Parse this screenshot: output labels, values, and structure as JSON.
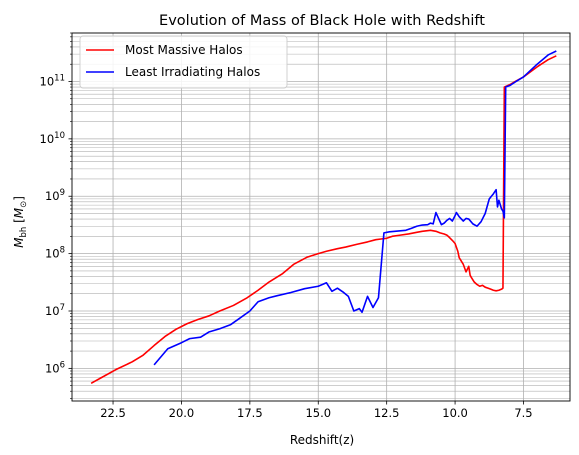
{
  "chart_data": {
    "type": "line",
    "title": "Evolution of Mass of Black Hole with Redshift",
    "xlabel": "Redshift(z)",
    "ylabel": "M_bh [M_⊙]",
    "xlim": [
      24.0,
      5.8
    ],
    "ylim": [
      270000,
      700000000000
    ],
    "yscale": "log",
    "x_inverted": true,
    "grid": true,
    "legend_position": "upper-left",
    "x_ticks": [
      22.5,
      20.0,
      17.5,
      15.0,
      12.5,
      10.0,
      7.5
    ],
    "x_tick_labels": [
      "22.5",
      "20.0",
      "17.5",
      "15.0",
      "12.5",
      "10.0",
      "7.5"
    ],
    "y_ticks": [
      1000000,
      10000000,
      100000000,
      1000000000,
      10000000000,
      100000000000
    ],
    "y_tick_exponents": [
      "6",
      "7",
      "8",
      "9",
      "10",
      "11"
    ],
    "series": [
      {
        "name": "Most Massive Halos",
        "color": "#ff0000",
        "x": [
          23.3,
          22.9,
          22.4,
          21.8,
          21.4,
          21.0,
          20.6,
          20.2,
          19.8,
          19.4,
          19.0,
          18.6,
          18.1,
          17.6,
          17.2,
          16.8,
          16.3,
          15.9,
          15.4,
          15.0,
          14.7,
          14.3,
          14.0,
          13.6,
          13.2,
          12.9,
          12.5,
          12.3,
          12.0,
          11.7,
          11.4,
          11.2,
          10.9,
          10.7,
          10.55,
          10.4,
          10.3,
          10.2,
          10.1,
          10.0,
          9.9,
          9.85,
          9.7,
          9.6,
          9.5,
          9.45,
          9.4,
          9.3,
          9.2,
          9.1,
          9.0,
          8.9,
          8.8,
          8.7,
          8.6,
          8.5,
          8.4,
          8.3,
          8.25,
          8.2,
          8.15,
          8.0,
          7.8,
          7.5,
          7.0,
          6.6,
          6.3
        ],
        "values": [
          550000,
          700000,
          950000,
          1300000,
          1700000,
          2500000,
          3600000,
          4800000,
          6000000,
          7100000,
          8200000,
          10000000,
          12500000,
          17000000,
          23000000,
          32000000,
          45000000,
          65000000,
          87000000,
          100000000,
          110000000,
          122000000,
          130000000,
          145000000,
          160000000,
          175000000,
          185000000,
          200000000,
          210000000,
          220000000,
          235000000,
          245000000,
          255000000,
          245000000,
          230000000,
          220000000,
          210000000,
          190000000,
          170000000,
          150000000,
          110000000,
          85000000,
          65000000,
          48000000,
          60000000,
          42000000,
          38000000,
          32000000,
          29000000,
          27000000,
          28000000,
          26000000,
          25000000,
          24000000,
          23000000,
          22500000,
          23000000,
          24000000,
          25000000,
          80000000000,
          82000000000,
          88000000000,
          100000000000,
          120000000000,
          180000000000,
          240000000000,
          280000000000
        ]
      },
      {
        "name": "Least Irradiating Halos",
        "color": "#0000ff",
        "x": [
          21.0,
          20.5,
          20.0,
          19.7,
          19.3,
          19.0,
          18.6,
          18.2,
          17.9,
          17.5,
          17.2,
          16.8,
          16.5,
          16.0,
          15.5,
          15.0,
          14.7,
          14.5,
          14.3,
          14.1,
          13.9,
          13.7,
          13.5,
          13.4,
          13.2,
          13.0,
          12.8,
          12.6,
          12.4,
          12.0,
          11.8,
          11.6,
          11.4,
          11.2,
          11.0,
          10.9,
          10.8,
          10.7,
          10.5,
          10.4,
          10.3,
          10.2,
          10.1,
          10.0,
          9.95,
          9.85,
          9.7,
          9.6,
          9.5,
          9.35,
          9.2,
          9.05,
          8.9,
          8.75,
          8.6,
          8.5,
          8.45,
          8.4,
          8.3,
          8.25,
          8.2,
          8.15,
          8.0,
          7.8,
          7.5,
          7.0,
          6.6,
          6.3
        ],
        "values": [
          1150000,
          2200000,
          2800000,
          3300000,
          3500000,
          4300000,
          4900000,
          5800000,
          7300000,
          10000000,
          14500000,
          17000000,
          18500000,
          21000000,
          24500000,
          27000000,
          31000000,
          22000000,
          25000000,
          21500000,
          18000000,
          10000000,
          11000000,
          9500000,
          18000000,
          11500000,
          17000000,
          230000000,
          240000000,
          250000000,
          255000000,
          275000000,
          300000000,
          315000000,
          320000000,
          340000000,
          330000000,
          520000000,
          320000000,
          340000000,
          380000000,
          410000000,
          370000000,
          460000000,
          520000000,
          440000000,
          370000000,
          410000000,
          400000000,
          330000000,
          300000000,
          360000000,
          500000000,
          900000000,
          1100000000,
          1300000000,
          650000000,
          850000000,
          600000000,
          550000000,
          420000000,
          80000000000,
          85000000000,
          98000000000,
          120000000000,
          200000000000,
          290000000000,
          340000000000
        ]
      }
    ]
  }
}
